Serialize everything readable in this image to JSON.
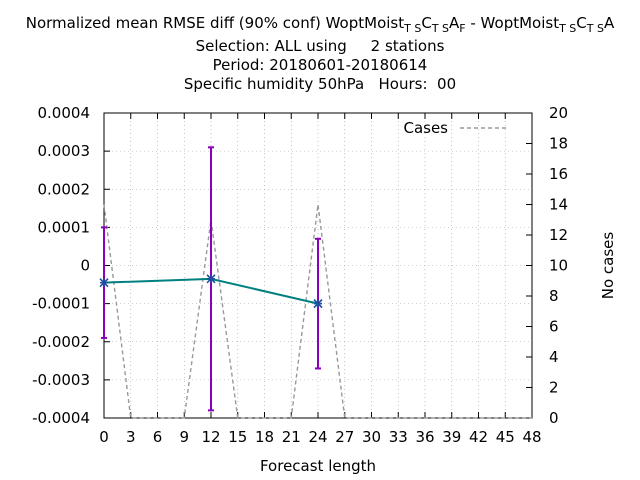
{
  "chart_data": {
    "type": "line",
    "title_parts": [
      {
        "t": "Normalized mean RMSE diff (90% conf) WoptMoist"
      },
      {
        "t": "T S",
        "sub": true
      },
      {
        "t": "C"
      },
      {
        "t": "T S",
        "sub": true
      },
      {
        "t": "A"
      },
      {
        "t": "F",
        "sub": true
      },
      {
        "t": " - WoptMoist"
      },
      {
        "t": "T S",
        "sub": true
      },
      {
        "t": "C"
      },
      {
        "t": "T S",
        "sub": true
      },
      {
        "t": "A"
      }
    ],
    "subtitle_lines": [
      "Selection: ALL using     2 stations",
      "Period: 20180601-20180614",
      "Specific humidity 50hPa   Hours:  00"
    ],
    "xlabel": "Forecast length",
    "ylabel": "",
    "y2label": "No cases",
    "xlim": [
      0,
      48
    ],
    "ylim": [
      -0.0004,
      0.0004
    ],
    "y2lim": [
      0,
      20
    ],
    "x_ticks": [
      0,
      3,
      6,
      9,
      12,
      15,
      18,
      21,
      24,
      27,
      30,
      33,
      36,
      39,
      42,
      45,
      48
    ],
    "y_ticks": [
      -0.0004,
      -0.0003,
      -0.0002,
      -0.0001,
      0,
      0.0001,
      0.0002,
      0.0003,
      0.0004
    ],
    "y_tick_labels": [
      "-0.0004",
      "-0.0003",
      "-0.0002",
      "-0.0001",
      "0",
      "0.0001",
      "0.0002",
      "0.0003",
      "0.0004"
    ],
    "y2_ticks": [
      0,
      2,
      4,
      6,
      8,
      10,
      12,
      14,
      16,
      18,
      20
    ],
    "grid": true,
    "legend": {
      "position": "top-right",
      "entries": [
        "Cases"
      ]
    },
    "series": [
      {
        "x": [
          0,
          12,
          24
        ],
        "y": [
          -4.5e-05,
          -3.5e-05,
          -0.0001
        ],
        "err_low": [
          -0.00019,
          -0.00038,
          -0.00027
        ],
        "err_high": [
          0.0001,
          0.00031,
          7e-05
        ],
        "color": "#008080",
        "errorbar_color": "#8b00b8"
      },
      {
        "name": "Cases",
        "axis": "y2",
        "x": [
          0,
          3,
          6,
          9,
          12,
          15,
          18,
          21,
          24,
          27,
          30,
          33,
          36,
          39,
          42,
          45,
          48
        ],
        "y": [
          14,
          0,
          0,
          0,
          13,
          0,
          0,
          0,
          14,
          0,
          0,
          0,
          0,
          0,
          0,
          0,
          0
        ],
        "color": "#999999",
        "dash": true
      }
    ]
  }
}
